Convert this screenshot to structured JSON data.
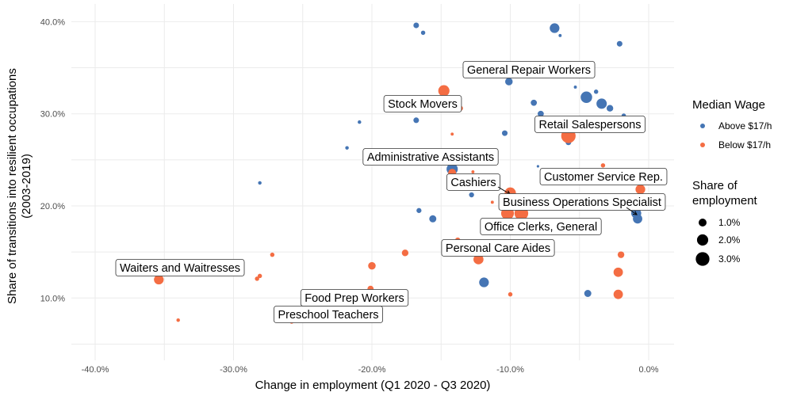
{
  "chart_data": {
    "type": "scatter",
    "title": "",
    "xlabel": "Change in employment (Q1 2020 - Q3 2020)",
    "ylabel": [
      "Share of transitions into resilient occupations",
      "(2003-2019)"
    ],
    "xlim": [
      -41.5,
      1.8
    ],
    "ylim": [
      3.8,
      42.3
    ],
    "grid": true,
    "x_ticks": [
      -40,
      -30,
      -20,
      -10,
      0
    ],
    "x_tick_labels": [
      "-40.0%",
      "-30.0%",
      "-20.0%",
      "-10.0%",
      "0.0%"
    ],
    "y_ticks": [
      10,
      20,
      30,
      40
    ],
    "y_tick_labels": [
      "10.0%",
      "20.0%",
      "30.0%",
      "40.0%"
    ],
    "legend_position": "right",
    "color_legend": {
      "title": "Median Wage",
      "entries": [
        {
          "label": "Above $17/h",
          "color": "#4575B4"
        },
        {
          "label": "Below $17/h",
          "color": "#F46D43"
        }
      ]
    },
    "size_legend": {
      "title": [
        "Share of",
        "employment"
      ],
      "entries": [
        {
          "label": "1.0%",
          "value": 1.0
        },
        {
          "label": "2.0%",
          "value": 2.0
        },
        {
          "label": "3.0%",
          "value": 3.0
        }
      ]
    },
    "points": [
      {
        "x": -16.8,
        "y": 39.6,
        "size": 0.5,
        "wage": "Above $17/h"
      },
      {
        "x": -16.3,
        "y": 38.8,
        "size": 0.3,
        "wage": "Above $17/h"
      },
      {
        "x": -6.8,
        "y": 39.3,
        "size": 1.5,
        "wage": "Above $17/h"
      },
      {
        "x": -6.4,
        "y": 38.5,
        "size": 0.15,
        "wage": "Above $17/h"
      },
      {
        "x": -2.1,
        "y": 37.6,
        "size": 0.5,
        "wage": "Above $17/h"
      },
      {
        "x": -10.1,
        "y": 33.5,
        "size": 0.9,
        "wage": "Above $17/h"
      },
      {
        "x": -12.9,
        "y": 34.3,
        "size": 0.4,
        "wage": "Above $17/h"
      },
      {
        "x": -5.3,
        "y": 32.9,
        "size": 0.15,
        "wage": "Above $17/h"
      },
      {
        "x": -4.5,
        "y": 34.1,
        "size": 0.3,
        "wage": "Above $17/h"
      },
      {
        "x": -3.8,
        "y": 32.4,
        "size": 0.3,
        "wage": "Above $17/h"
      },
      {
        "x": -4.5,
        "y": 31.8,
        "size": 2.1,
        "wage": "Above $17/h"
      },
      {
        "x": -3.4,
        "y": 31.1,
        "size": 1.7,
        "wage": "Above $17/h"
      },
      {
        "x": -2.8,
        "y": 30.6,
        "size": 0.7,
        "wage": "Above $17/h"
      },
      {
        "x": -8.3,
        "y": 31.2,
        "size": 0.6,
        "wage": "Above $17/h"
      },
      {
        "x": -7.8,
        "y": 30.0,
        "size": 0.6,
        "wage": "Above $17/h"
      },
      {
        "x": -1.8,
        "y": 29.8,
        "size": 0.3,
        "wage": "Above $17/h"
      },
      {
        "x": -20.9,
        "y": 29.1,
        "size": 0.2,
        "wage": "Above $17/h"
      },
      {
        "x": -16.8,
        "y": 29.3,
        "size": 0.5,
        "wage": "Above $17/h"
      },
      {
        "x": -10.4,
        "y": 27.9,
        "size": 0.5,
        "wage": "Above $17/h"
      },
      {
        "x": -5.8,
        "y": 26.9,
        "size": 0.5,
        "wage": "Above $17/h"
      },
      {
        "x": -21.8,
        "y": 26.3,
        "size": 0.2,
        "wage": "Above $17/h"
      },
      {
        "x": -28.1,
        "y": 22.5,
        "size": 0.2,
        "wage": "Above $17/h"
      },
      {
        "x": -14.2,
        "y": 24.0,
        "size": 2.0,
        "wage": "Above $17/h"
      },
      {
        "x": -8.0,
        "y": 24.3,
        "size": 0.1,
        "wage": "Above $17/h"
      },
      {
        "x": -12.8,
        "y": 21.2,
        "size": 0.4,
        "wage": "Above $17/h"
      },
      {
        "x": -16.6,
        "y": 19.5,
        "size": 0.4,
        "wage": "Above $17/h"
      },
      {
        "x": -15.6,
        "y": 18.6,
        "size": 0.8,
        "wage": "Above $17/h"
      },
      {
        "x": -0.9,
        "y": 19.2,
        "size": 1.6,
        "wage": "Above $17/h"
      },
      {
        "x": -0.8,
        "y": 18.6,
        "size": 1.4,
        "wage": "Above $17/h"
      },
      {
        "x": -11.9,
        "y": 11.7,
        "size": 1.5,
        "wage": "Above $17/h"
      },
      {
        "x": -4.4,
        "y": 10.5,
        "size": 0.8,
        "wage": "Above $17/h"
      },
      {
        "x": -14.8,
        "y": 32.5,
        "size": 2.0,
        "wage": "Below $17/h"
      },
      {
        "x": -13.6,
        "y": 30.6,
        "size": 0.4,
        "wage": "Below $17/h"
      },
      {
        "x": -14.2,
        "y": 27.8,
        "size": 0.15,
        "wage": "Below $17/h"
      },
      {
        "x": -5.8,
        "y": 27.6,
        "size": 3.3,
        "wage": "Below $17/h"
      },
      {
        "x": -3.3,
        "y": 24.4,
        "size": 0.3,
        "wage": "Below $17/h"
      },
      {
        "x": -14.2,
        "y": 23.6,
        "size": 1.0,
        "wage": "Below $17/h"
      },
      {
        "x": -12.7,
        "y": 23.7,
        "size": 0.15,
        "wage": "Below $17/h"
      },
      {
        "x": -10.0,
        "y": 21.4,
        "size": 2.0,
        "wage": "Below $17/h"
      },
      {
        "x": -11.3,
        "y": 20.4,
        "size": 0.15,
        "wage": "Below $17/h"
      },
      {
        "x": -10.2,
        "y": 19.2,
        "size": 2.6,
        "wage": "Below $17/h"
      },
      {
        "x": -9.2,
        "y": 19.2,
        "size": 3.0,
        "wage": "Below $17/h"
      },
      {
        "x": -0.6,
        "y": 21.8,
        "size": 1.5,
        "wage": "Below $17/h"
      },
      {
        "x": -13.8,
        "y": 16.3,
        "size": 0.4,
        "wage": "Below $17/h"
      },
      {
        "x": -17.6,
        "y": 14.9,
        "size": 0.7,
        "wage": "Below $17/h"
      },
      {
        "x": -20.0,
        "y": 13.5,
        "size": 0.9,
        "wage": "Below $17/h"
      },
      {
        "x": -27.2,
        "y": 14.7,
        "size": 0.3,
        "wage": "Below $17/h"
      },
      {
        "x": -28.1,
        "y": 12.4,
        "size": 0.3,
        "wage": "Below $17/h"
      },
      {
        "x": -28.3,
        "y": 12.1,
        "size": 0.3,
        "wage": "Below $17/h"
      },
      {
        "x": -35.4,
        "y": 12.0,
        "size": 1.5,
        "wage": "Below $17/h"
      },
      {
        "x": -12.3,
        "y": 14.2,
        "size": 1.6,
        "wage": "Below $17/h"
      },
      {
        "x": -2.0,
        "y": 14.7,
        "size": 0.7,
        "wage": "Below $17/h"
      },
      {
        "x": -2.2,
        "y": 12.8,
        "size": 1.4,
        "wage": "Below $17/h"
      },
      {
        "x": -2.2,
        "y": 10.4,
        "size": 1.4,
        "wage": "Below $17/h"
      },
      {
        "x": -10.0,
        "y": 10.4,
        "size": 0.3,
        "wage": "Below $17/h"
      },
      {
        "x": -20.1,
        "y": 11.0,
        "size": 0.6,
        "wage": "Below $17/h"
      },
      {
        "x": -34.0,
        "y": 7.6,
        "size": 0.2,
        "wage": "Below $17/h"
      },
      {
        "x": -25.8,
        "y": 7.4,
        "size": 0.2,
        "wage": "Below $17/h"
      }
    ],
    "annotations": [
      {
        "text": "General Repair Workers"
      },
      {
        "text": "Stock Movers"
      },
      {
        "text": "Retail Salespersons"
      },
      {
        "text": "Administrative Assistants"
      },
      {
        "text": "Cashiers"
      },
      {
        "text": "Customer Service Rep."
      },
      {
        "text": "Business Operations Specialist"
      },
      {
        "text": "Office Clerks, General"
      },
      {
        "text": "Personal Care Aides"
      },
      {
        "text": "Waiters and Waitresses"
      },
      {
        "text": "Food Prep Workers"
      },
      {
        "text": "Preschool Teachers"
      }
    ]
  }
}
